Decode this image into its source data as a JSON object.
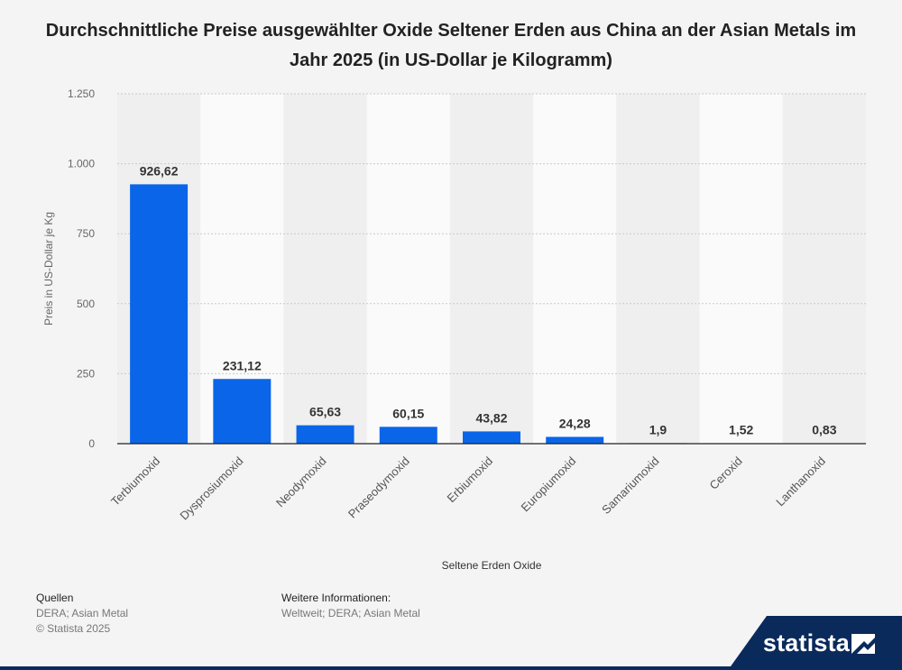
{
  "title": "Durchschnittliche Preise ausgewählter Oxide Seltener Erden aus China an der Asian Metals im Jahr 2025 (in US-Dollar je Kilogramm)",
  "chart_data": {
    "type": "bar",
    "categories": [
      "Terbiumoxid",
      "Dysprosiumoxid",
      "Neodymoxid",
      "Praseodymoxid",
      "Erbiumoxid",
      "Europiumoxid",
      "Samariumoxid",
      "Ceroxid",
      "Lanthanoxid"
    ],
    "values": [
      926.62,
      231.12,
      65.63,
      60.15,
      43.82,
      24.28,
      1.9,
      1.52,
      0.83
    ],
    "value_labels": [
      "926,62",
      "231,12",
      "65,63",
      "60,15",
      "43,82",
      "24,28",
      "1,9",
      "1,52",
      "0,83"
    ],
    "xlabel": "Seltene Erden Oxide",
    "ylabel": "Preis in US-Dollar je Kg",
    "ylim": [
      0,
      1250
    ],
    "yticks": [
      0,
      250,
      500,
      750,
      1000,
      1250
    ],
    "ytick_labels": [
      "0",
      "250",
      "500",
      "750",
      "1.000",
      "1.250"
    ],
    "grid": true,
    "bar_color": "#0a65e8"
  },
  "footer": {
    "sources_heading": "Quellen",
    "sources_text": "DERA; Asian Metal",
    "copyright": "© Statista 2025",
    "info_heading": "Weitere Informationen:",
    "info_text": "Weltweit; DERA; Asian Metal"
  },
  "logo": {
    "text": "statista",
    "color": "#0a2a5c"
  }
}
